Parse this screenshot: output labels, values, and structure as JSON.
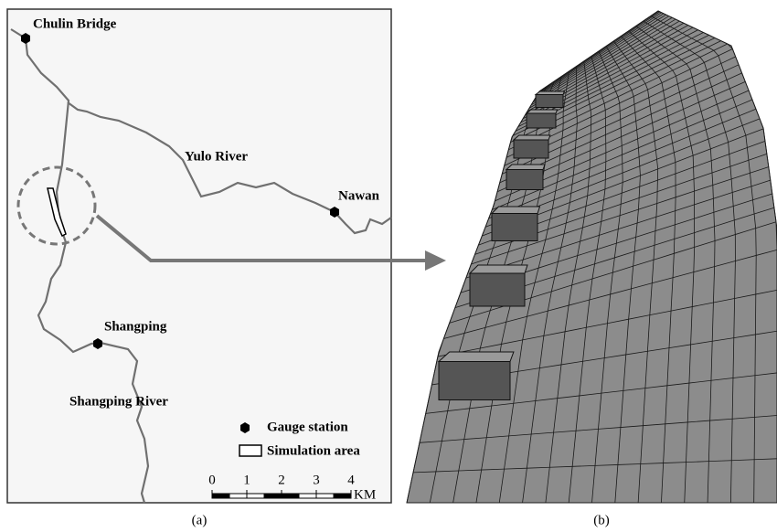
{
  "map": {
    "labels": {
      "bridge": "Chulin Bridge",
      "yulo": "Yulo River",
      "nawan": "Nawan",
      "shangping": "Shangping",
      "shangping_river": "Shangping River"
    },
    "legend": {
      "gauge": "Gauge station",
      "area": "Simulation area"
    },
    "scale": {
      "ticks": [
        0,
        1,
        2,
        3,
        4
      ],
      "unit": "KM"
    }
  },
  "captions": {
    "a": "(a)",
    "b": "(b)"
  }
}
